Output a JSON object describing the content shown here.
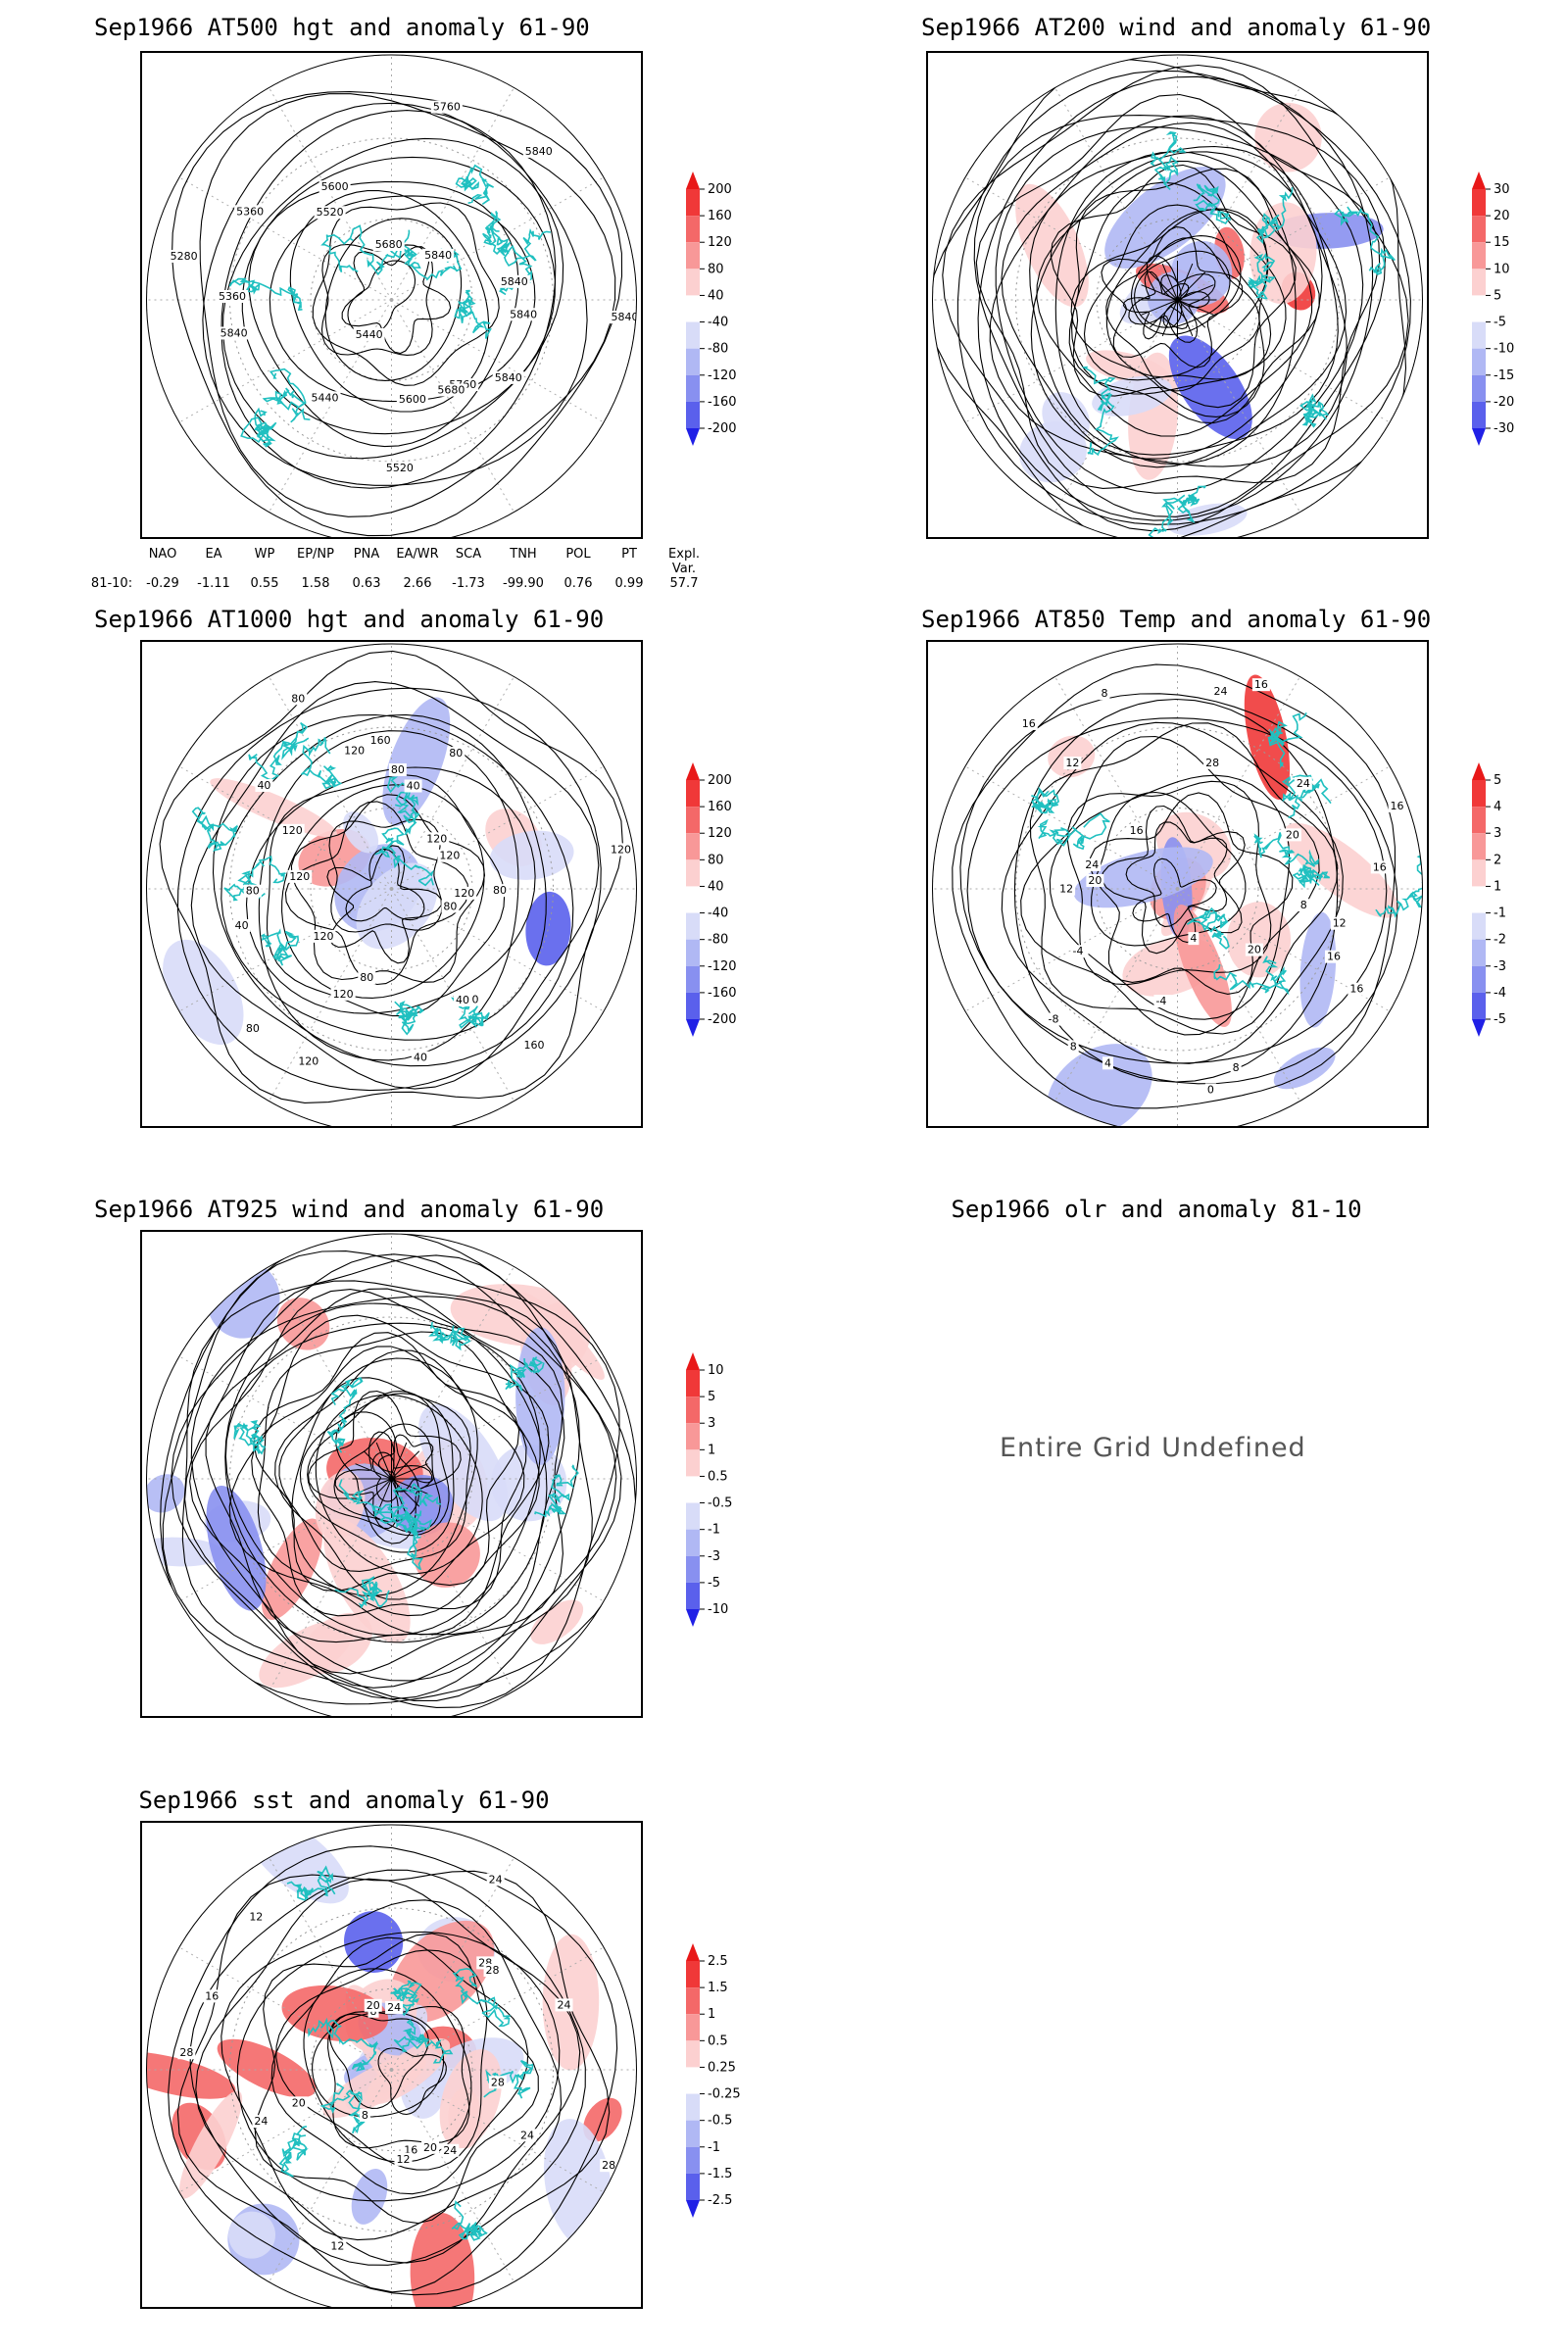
{
  "panels": [
    {
      "id": "p1",
      "title": "Sep1966 AT500 hgt and anomaly 61-90",
      "colorbar": [
        "200",
        "160",
        "120",
        "80",
        "40",
        "-40",
        "-80",
        "-120",
        "-160",
        "-200"
      ],
      "contour_labels": [
        "5840",
        "5840",
        "5760",
        "5680",
        "5600",
        "5520",
        "5440",
        "5440",
        "5840",
        "5360",
        "5280",
        "5360",
        "5520",
        "5600",
        "5680",
        "5760",
        "5840",
        "5840",
        "5840",
        "5840"
      ]
    },
    {
      "id": "p2",
      "title": "Sep1966 AT200 wind and anomaly 61-90",
      "colorbar": [
        "30",
        "20",
        "15",
        "10",
        "5",
        "-5",
        "-10",
        "-15",
        "-20",
        "-30"
      ],
      "contour_labels": []
    },
    {
      "id": "p3",
      "title": "Sep1966 AT1000 hgt and anomaly 61-90",
      "colorbar": [
        "200",
        "160",
        "120",
        "80",
        "40",
        "-40",
        "-80",
        "-120",
        "-160",
        "-200"
      ],
      "contour_labels": [
        "120",
        "80",
        "160",
        "120",
        "40",
        "40",
        "80",
        "120",
        "120",
        "80",
        "120",
        "40",
        "80",
        "120",
        "120",
        "40",
        "80",
        "120",
        "160",
        "80",
        "40",
        "80",
        "120",
        "120",
        "120",
        "80"
      ]
    },
    {
      "id": "p4",
      "title": "Sep1966 AT850 Temp and anomaly 61-90",
      "colorbar": [
        "5",
        "4",
        "3",
        "2",
        "1",
        "-1",
        "-2",
        "-3",
        "-4",
        "-5"
      ],
      "contour_labels": [
        "16",
        "12",
        "16",
        "20",
        "8",
        "4",
        "0",
        "-4",
        "4",
        "8",
        "-8",
        "-4",
        "12",
        "20",
        "24",
        "16",
        "16",
        "12",
        "8",
        "24",
        "16",
        "28",
        "24",
        "20",
        "16",
        "16",
        "8"
      ]
    },
    {
      "id": "p5",
      "title": "Sep1966 AT925 wind and anomaly 61-90",
      "colorbar": [
        "10",
        "5",
        "3",
        "1",
        "0.5",
        "-0.5",
        "-1",
        "-3",
        "-5",
        "-10"
      ],
      "contour_labels": []
    },
    {
      "id": "p6",
      "title": "Sep1966 olr and anomaly 81-10",
      "message": "Entire Grid Undefined"
    },
    {
      "id": "p7",
      "title": "Sep1966 sst and anomaly 61-90",
      "colorbar": [
        "2.5",
        "1.5",
        "1",
        "0.5",
        "0.25",
        "-0.25",
        "-0.5",
        "-1",
        "-1.5",
        "-2.5"
      ],
      "contour_labels": [
        "24",
        "28",
        "24",
        "20",
        "16",
        "12",
        "12",
        "8",
        "20",
        "24",
        "28",
        "16",
        "12",
        "8",
        "20",
        "24",
        "24",
        "28",
        "28",
        "24",
        "28"
      ]
    }
  ],
  "teleconnections": {
    "headers": [
      "NAO",
      "EA",
      "WP",
      "EP/NP",
      "PNA",
      "EA/WR",
      "SCA",
      "TNH",
      "POL",
      "PT",
      "Expl. Var."
    ],
    "row_label": "81-10:",
    "values": [
      "-0.29",
      "-1.11",
      "0.55",
      "1.58",
      "0.63",
      "2.66",
      "-1.73",
      "-99.90",
      "0.76",
      "0.99",
      "57.7"
    ]
  },
  "colors": {
    "coast": "#20c0c0",
    "pos": [
      "#e81818",
      "#f03838",
      "#f46868",
      "#f89898",
      "#fcd0d0"
    ],
    "neg": [
      "#d8dcf8",
      "#b0b8f4",
      "#8890f0",
      "#5a60ec",
      "#2020e6"
    ]
  }
}
